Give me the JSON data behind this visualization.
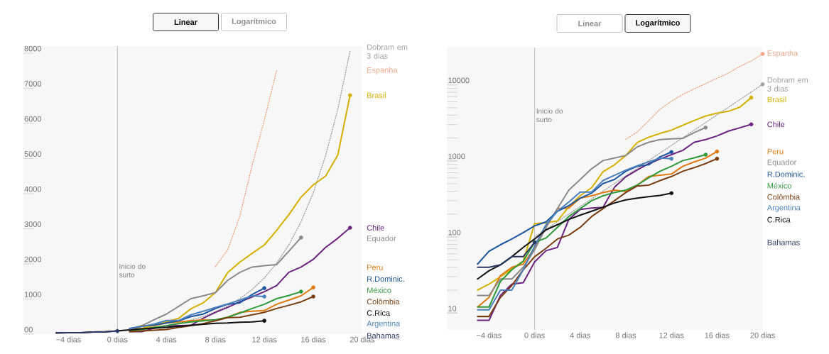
{
  "chart_data": [
    {
      "type": "line",
      "x": [
        -5,
        -4,
        -3,
        -2,
        -1,
        0,
        1,
        2,
        3,
        4,
        5,
        6,
        7,
        8,
        9,
        10,
        11,
        12,
        13,
        14,
        15,
        16,
        17,
        18,
        19
      ],
      "series": [
        {
          "name": "Dobram em 3 dias",
          "color": "#a0a0a0",
          "line_style": "dotted",
          "values": [
            null,
            null,
            null,
            null,
            null,
            100,
            130,
            160,
            200,
            250,
            320,
            400,
            500,
            640,
            800,
            1010,
            1270,
            1600,
            2020,
            2540,
            3200,
            4030,
            5080,
            6400,
            8060
          ]
        },
        {
          "name": "Espanha",
          "color": "#f0a584",
          "line_style": "dotted",
          "values": [
            null,
            null,
            null,
            null,
            null,
            null,
            null,
            null,
            null,
            null,
            null,
            null,
            null,
            1920,
            2400,
            3360,
            4800,
            6100,
            7500,
            null,
            null,
            null,
            null,
            null,
            null
          ]
        },
        {
          "name": "Brasil",
          "color": "#d4b000",
          "values": [
            null,
            null,
            null,
            null,
            null,
            null,
            150,
            160,
            250,
            350,
            450,
            720,
            890,
            1180,
            1750,
            2050,
            2300,
            2540,
            2950,
            3400,
            3900,
            4250,
            4500,
            5100,
            6800
          ]
        },
        {
          "name": "Chile",
          "color": "#6b2380",
          "values": [
            null,
            null,
            null,
            null,
            null,
            null,
            70,
            70,
            170,
            230,
            240,
            250,
            450,
            620,
            760,
            920,
            1060,
            1210,
            1380,
            1760,
            1910,
            2130,
            2470,
            2730,
            3030
          ]
        },
        {
          "name": "Equador",
          "color": "#8a8a8a",
          "values": [
            null,
            null,
            null,
            null,
            null,
            null,
            130,
            240,
            410,
            570,
            790,
            1010,
            1090,
            1180,
            1530,
            1760,
            1910,
            1950,
            1980,
            2360,
            2750,
            null,
            null,
            null,
            null
          ]
        },
        {
          "name": "Peru",
          "color": "#e07a10",
          "values": [
            null,
            null,
            null,
            null,
            null,
            null,
            130,
            240,
            240,
            320,
            350,
            380,
            410,
            400,
            480,
            620,
            650,
            670,
            850,
            970,
            1090,
            1330,
            null,
            null,
            null
          ]
        },
        {
          "name": "R.Dominic.",
          "color": "#1c55a0",
          "values": [
            null,
            null,
            null,
            null,
            null,
            null,
            160,
            220,
            260,
            320,
            380,
            500,
            570,
            730,
            850,
            890,
            1130,
            1310,
            null,
            null,
            null,
            null,
            null,
            null,
            null
          ]
        },
        {
          "name": "México",
          "color": "#2e9a3a",
          "values": [
            null,
            null,
            null,
            null,
            null,
            null,
            100,
            130,
            190,
            240,
            300,
            350,
            380,
            410,
            480,
            600,
            730,
            850,
            1010,
            1100,
            1210,
            null,
            null,
            null,
            null
          ]
        },
        {
          "name": "Colômbia",
          "color": "#7a3e12",
          "values": [
            null,
            null,
            null,
            null,
            null,
            null,
            70,
            90,
            110,
            130,
            190,
            240,
            300,
            380,
            470,
            480,
            550,
            620,
            730,
            820,
            920,
            1070,
            null,
            null,
            null
          ]
        },
        {
          "name": "C.Rica",
          "color": "#111111",
          "values": [
            30,
            40,
            40,
            60,
            70,
            90,
            120,
            150,
            170,
            190,
            220,
            250,
            280,
            310,
            320,
            340,
            350,
            380,
            null,
            null,
            null,
            null,
            null,
            null,
            null
          ]
        },
        {
          "name": "Argentina",
          "color": "#4a80bb",
          "values": [
            null,
            null,
            null,
            null,
            null,
            null,
            150,
            220,
            290,
            390,
            390,
            550,
            650,
            760,
            860,
            970,
            1090,
            1070,
            null,
            null,
            null,
            null,
            null,
            null,
            null
          ]
        },
        {
          "name": "Bahamas",
          "color": "#2b3a66",
          "values": [
            40,
            40,
            40,
            60,
            60,
            90,
            null,
            null,
            null,
            null,
            null,
            null,
            null,
            null,
            null,
            null,
            null,
            null,
            null,
            null,
            null,
            null,
            null,
            null,
            null
          ]
        }
      ],
      "xlim": [
        -7.7,
        20
      ],
      "ylim": [
        0,
        8200
      ],
      "xticks": [
        {
          "value": -4,
          "label": "−4 dias"
        },
        {
          "value": 0,
          "label": "0 dias"
        },
        {
          "value": 4,
          "label": "4 dias"
        },
        {
          "value": 8,
          "label": "8 dias"
        },
        {
          "value": 12,
          "label": "12 dias"
        },
        {
          "value": 16,
          "label": "16 dias"
        },
        {
          "value": 20,
          "label": "20 dias"
        }
      ],
      "yticks": [
        {
          "value": 0,
          "label": "00"
        },
        1000,
        2000,
        3000,
        4000,
        5000,
        6000,
        7000,
        8000
      ],
      "ref_lines": [
        {
          "axis": "x",
          "value": 0,
          "label": "Inicio do surto"
        }
      ],
      "annotations": [
        "Linear",
        "Logarítmico"
      ]
    },
    {
      "type": "line",
      "log": "y",
      "x": [
        -5,
        -4,
        -3,
        -2,
        -1,
        0,
        1,
        2,
        3,
        4,
        5,
        6,
        7,
        8,
        9,
        10,
        11,
        12,
        13,
        14,
        15,
        16,
        17,
        18,
        19,
        20
      ],
      "series": [
        {
          "name": "Espanha",
          "color": "#f0a584",
          "line_style": "dotted",
          "values": [
            null,
            null,
            null,
            null,
            null,
            null,
            null,
            null,
            null,
            null,
            null,
            null,
            null,
            1920,
            2400,
            3360,
            4800,
            6100,
            7500,
            8900,
            10400,
            12200,
            14300,
            17500,
            20600,
            25600
          ]
        },
        {
          "name": "Dobram em 3 dias",
          "color": "#a0a0a0",
          "line_style": "dotted",
          "values": [
            null,
            null,
            null,
            null,
            null,
            100,
            126,
            159,
            200,
            252,
            317,
            400,
            504,
            635,
            800,
            1010,
            1270,
            1600,
            2020,
            2540,
            3200,
            4030,
            5080,
            6400,
            8060,
            10200
          ]
        },
        {
          "name": "Brasil",
          "color": "#d4b000",
          "values": [
            20,
            24,
            30,
            38,
            48,
            150,
            154,
            162,
            250,
            350,
            445,
            720,
            890,
            1180,
            1750,
            2050,
            2300,
            2540,
            2950,
            3400,
            3900,
            4250,
            4500,
            5100,
            6800,
            null
          ]
        },
        {
          "name": "Chile",
          "color": "#6b2380",
          "values": [
            8,
            8,
            17,
            24,
            25,
            47,
            66,
            73,
            170,
            230,
            240,
            245,
            450,
            620,
            760,
            920,
            1060,
            1210,
            1380,
            1760,
            1910,
            2130,
            2470,
            2730,
            3030,
            null
          ]
        },
        {
          "name": "Peru",
          "color": "#e07a10",
          "values": [
            12,
            16,
            31,
            40,
            44,
            72,
            134,
            236,
            240,
            324,
            348,
            384,
            414,
            396,
            480,
            624,
            648,
            672,
            850,
            970,
            1090,
            1330,
            null,
            null,
            null,
            null
          ]
        },
        {
          "name": "Equador",
          "color": "#8a8a8a",
          "values": [
            17,
            17,
            28,
            28,
            40,
            68,
            134,
            236,
            414,
            570,
            790,
            1010,
            1090,
            1180,
            1530,
            1760,
            1910,
            1950,
            1980,
            2360,
            2750,
            null,
            null,
            null,
            null,
            null
          ]
        },
        {
          "name": "R.Dominic.",
          "color": "#1c55a0",
          "values": [
            44,
            65,
            79,
            94,
            114,
            140,
            158,
            218,
            258,
            324,
            378,
            504,
            570,
            732,
            852,
            888,
            1130,
            1310,
            null,
            null,
            null,
            null,
            null,
            null,
            null,
            null
          ]
        },
        {
          "name": "México",
          "color": "#2e9a3a",
          "values": [
            12,
            12,
            26,
            37,
            48,
            85,
            97,
            134,
            186,
            236,
            300,
            348,
            384,
            414,
            480,
            600,
            732,
            852,
            1010,
            1100,
            1210,
            null,
            null,
            null,
            null,
            null
          ]
        },
        {
          "name": "Colômbia",
          "color": "#7a3e12",
          "values": [
            9,
            9,
            16,
            23,
            37,
            55,
            71,
            94,
            106,
            134,
            186,
            236,
            300,
            384,
            468,
            480,
            552,
            624,
            732,
            816,
            924,
            1070,
            null,
            null,
            null,
            null
          ]
        },
        {
          "name": "Argentina",
          "color": "#4a80bb",
          "values": [
            11,
            11,
            20,
            20,
            37,
            76,
            145,
            218,
            288,
            390,
            390,
            552,
            648,
            756,
            864,
            972,
            1090,
            1070,
            null,
            null,
            null,
            null,
            null,
            null,
            null,
            null
          ]
        },
        {
          "name": "C.Rica",
          "color": "#111111",
          "values": [
            28,
            36,
            43,
            55,
            73,
            94,
            124,
            145,
            170,
            194,
            218,
            246,
            280,
            307,
            324,
            338,
            352,
            377,
            null,
            null,
            null,
            null,
            null,
            null,
            null,
            null
          ]
        },
        {
          "name": "Bahamas",
          "color": "#2b3a66",
          "values": [
            40,
            40,
            43,
            55,
            55,
            85,
            null,
            null,
            null,
            null,
            null,
            null,
            null,
            null,
            null,
            null,
            null,
            null,
            null,
            null,
            null,
            null,
            null,
            null,
            null,
            null
          ]
        }
      ],
      "xlim": [
        -7.7,
        20
      ],
      "ylim": [
        6,
        31000
      ],
      "xticks": [
        {
          "value": -4,
          "label": "−4 dias"
        },
        {
          "value": 0,
          "label": "0 dias"
        },
        {
          "value": 4,
          "label": "4 dias"
        },
        {
          "value": 8,
          "label": "8 dias"
        },
        {
          "value": 12,
          "label": "12 dias"
        },
        {
          "value": 16,
          "label": "16 dias"
        },
        {
          "value": 20,
          "label": "20 dias"
        }
      ],
      "yticks": [
        10,
        100,
        1000,
        10000
      ],
      "ref_lines": [
        {
          "axis": "x",
          "value": 0,
          "label": "Inicio do surto"
        }
      ],
      "annotations": [
        "Linear",
        "Logarítmico"
      ]
    }
  ]
}
